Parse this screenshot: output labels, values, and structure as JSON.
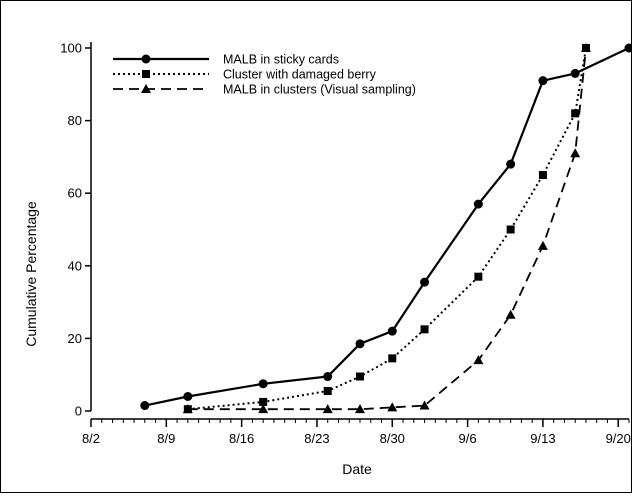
{
  "chart_data": {
    "type": "line",
    "xlabel": "Date",
    "ylabel": "Cumulative Percentage",
    "ylim": [
      0,
      100
    ],
    "xlim": [
      "2020-08-02",
      "2020-09-21"
    ],
    "x_ticks": [
      {
        "date": "2020-08-02",
        "label": "8/2"
      },
      {
        "date": "2020-08-09",
        "label": "8/9"
      },
      {
        "date": "2020-08-16",
        "label": "8/16"
      },
      {
        "date": "2020-08-23",
        "label": "8/23"
      },
      {
        "date": "2020-08-30",
        "label": "8/30"
      },
      {
        "date": "2020-09-06",
        "label": "9/6"
      },
      {
        "date": "2020-09-13",
        "label": "9/13"
      },
      {
        "date": "2020-09-20",
        "label": "9/20"
      }
    ],
    "y_ticks": [
      {
        "value": 0,
        "label": "0"
      },
      {
        "value": 20,
        "label": "20"
      },
      {
        "value": 40,
        "label": "40"
      },
      {
        "value": 60,
        "label": "60"
      },
      {
        "value": 80,
        "label": "80"
      },
      {
        "value": 100,
        "label": "100"
      }
    ],
    "grid": false,
    "legend_position": "top-left",
    "series": [
      {
        "name": "MALB in sticky cards",
        "line_style": "solid",
        "marker": "circle",
        "color": "#000000",
        "points": [
          {
            "x": "2020-08-07",
            "y": 1.5
          },
          {
            "x": "2020-08-11",
            "y": 4
          },
          {
            "x": "2020-08-18",
            "y": 7.5
          },
          {
            "x": "2020-08-24",
            "y": 9.5
          },
          {
            "x": "2020-08-27",
            "y": 18.5
          },
          {
            "x": "2020-08-30",
            "y": 22
          },
          {
            "x": "2020-09-02",
            "y": 35.5
          },
          {
            "x": "2020-09-07",
            "y": 57
          },
          {
            "x": "2020-09-10",
            "y": 68
          },
          {
            "x": "2020-09-13",
            "y": 91
          },
          {
            "x": "2020-09-16",
            "y": 93
          },
          {
            "x": "2020-09-21",
            "y": 100
          }
        ]
      },
      {
        "name": "Cluster with damaged berry",
        "line_style": "dotted",
        "marker": "square",
        "color": "#000000",
        "points": [
          {
            "x": "2020-08-11",
            "y": 0.5
          },
          {
            "x": "2020-08-18",
            "y": 2.5
          },
          {
            "x": "2020-08-24",
            "y": 5.5
          },
          {
            "x": "2020-08-27",
            "y": 9.5
          },
          {
            "x": "2020-08-30",
            "y": 14.5
          },
          {
            "x": "2020-09-02",
            "y": 22.5
          },
          {
            "x": "2020-09-07",
            "y": 37
          },
          {
            "x": "2020-09-10",
            "y": 50
          },
          {
            "x": "2020-09-13",
            "y": 65
          },
          {
            "x": "2020-09-16",
            "y": 82
          },
          {
            "x": "2020-09-17",
            "y": 100
          }
        ]
      },
      {
        "name": "MALB in clusters (Visual sampling)",
        "line_style": "dashed",
        "marker": "triangle",
        "color": "#000000",
        "points": [
          {
            "x": "2020-08-11",
            "y": 0.5
          },
          {
            "x": "2020-08-18",
            "y": 0.5
          },
          {
            "x": "2020-08-24",
            "y": 0.5
          },
          {
            "x": "2020-08-27",
            "y": 0.5
          },
          {
            "x": "2020-08-30",
            "y": 1
          },
          {
            "x": "2020-09-02",
            "y": 1.5
          },
          {
            "x": "2020-09-07",
            "y": 14
          },
          {
            "x": "2020-09-10",
            "y": 26.5
          },
          {
            "x": "2020-09-13",
            "y": 45.5
          },
          {
            "x": "2020-09-16",
            "y": 71
          },
          {
            "x": "2020-09-17",
            "y": 100
          }
        ]
      }
    ]
  }
}
